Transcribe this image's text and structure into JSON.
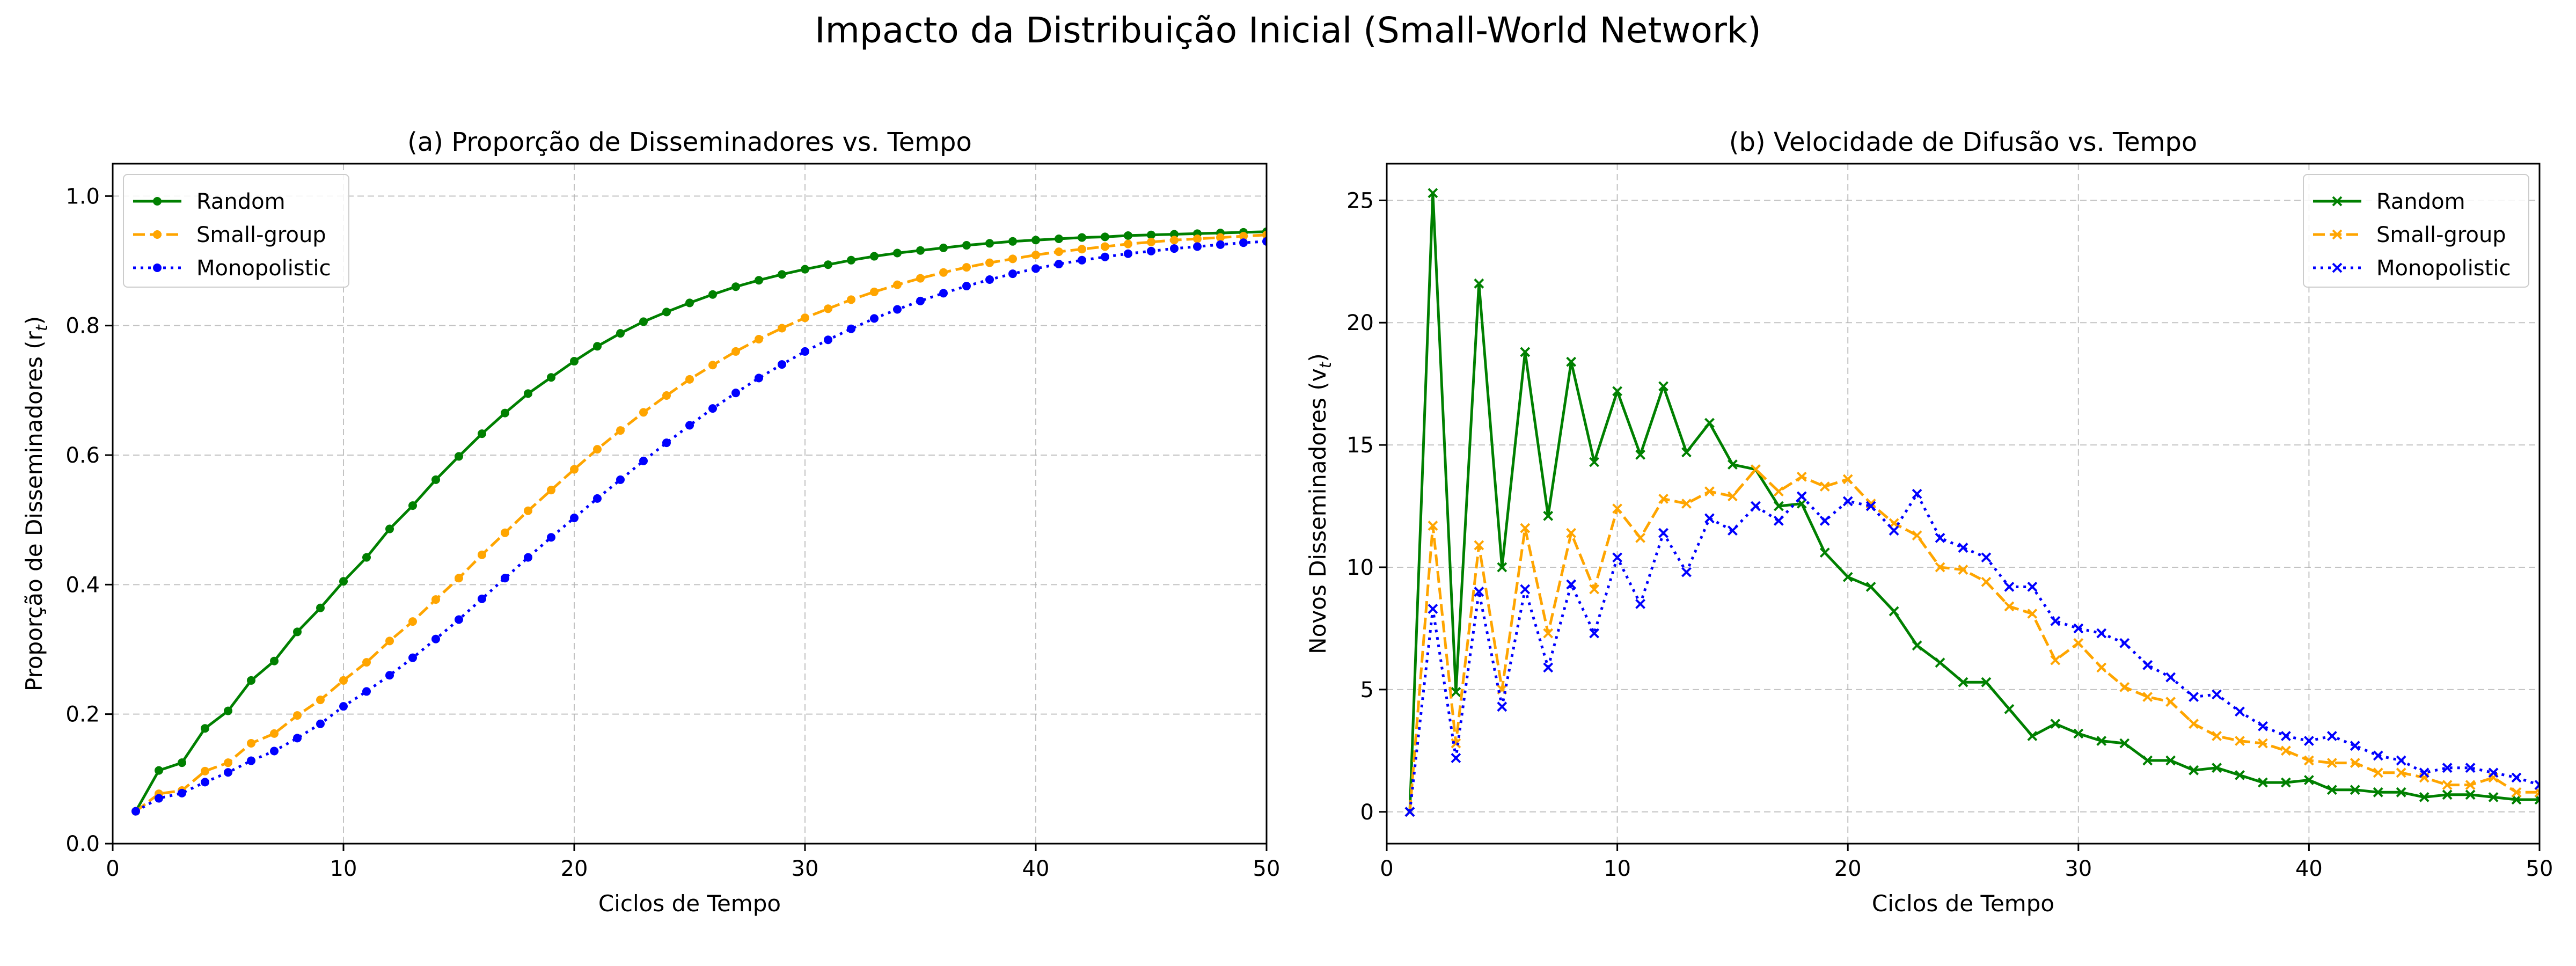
{
  "suptitle": "Impacto da Distribuição Inicial (Small-World Network)",
  "chart_data": [
    {
      "type": "line",
      "title": "(a) Proporção de Disseminadores vs. Tempo",
      "xlabel": "Ciclos de Tempo",
      "ylabel": "Proporção de Disseminadores (r",
      "ylabel_sub": "t",
      "ylabel_end": ")",
      "xlim": [
        0,
        50
      ],
      "ylim": [
        0,
        1.05
      ],
      "xticks": [
        0,
        10,
        20,
        30,
        40,
        50
      ],
      "yticks": [
        0.0,
        0.2,
        0.4,
        0.6,
        0.8,
        1.0
      ],
      "ytick_labels": [
        "0.0",
        "0.2",
        "0.4",
        "0.6",
        "0.8",
        "1.0"
      ],
      "grid": true,
      "legend_position": "upper-left",
      "x": [
        1,
        2,
        3,
        4,
        5,
        6,
        7,
        8,
        9,
        10,
        11,
        12,
        13,
        14,
        15,
        16,
        17,
        18,
        19,
        20,
        21,
        22,
        23,
        24,
        25,
        26,
        27,
        28,
        29,
        30,
        31,
        32,
        33,
        34,
        35,
        36,
        37,
        38,
        39,
        40,
        41,
        42,
        43,
        44,
        45,
        46,
        47,
        48,
        49,
        50
      ],
      "series": [
        {
          "name": "Random",
          "color": "#008000",
          "dash": "solid",
          "marker": "circle",
          "values": [
            0.05,
            0.113,
            0.125,
            0.178,
            0.205,
            0.252,
            0.282,
            0.327,
            0.364,
            0.405,
            0.442,
            0.486,
            0.522,
            0.562,
            0.598,
            0.633,
            0.665,
            0.695,
            0.72,
            0.745,
            0.768,
            0.788,
            0.806,
            0.821,
            0.835,
            0.848,
            0.86,
            0.87,
            0.879,
            0.887,
            0.894,
            0.901,
            0.907,
            0.912,
            0.916,
            0.92,
            0.924,
            0.927,
            0.93,
            0.932,
            0.934,
            0.936,
            0.937,
            0.939,
            0.94,
            0.941,
            0.942,
            0.943,
            0.944,
            0.945
          ]
        },
        {
          "name": "Small-group",
          "color": "#FFA500",
          "dash": "dashed",
          "marker": "circle",
          "values": [
            0.05,
            0.077,
            0.082,
            0.112,
            0.125,
            0.155,
            0.17,
            0.198,
            0.222,
            0.252,
            0.28,
            0.313,
            0.343,
            0.377,
            0.41,
            0.446,
            0.48,
            0.514,
            0.546,
            0.578,
            0.609,
            0.638,
            0.666,
            0.692,
            0.717,
            0.739,
            0.76,
            0.779,
            0.796,
            0.812,
            0.826,
            0.84,
            0.852,
            0.863,
            0.873,
            0.882,
            0.89,
            0.897,
            0.903,
            0.909,
            0.914,
            0.918,
            0.922,
            0.926,
            0.929,
            0.932,
            0.934,
            0.936,
            0.938,
            0.94
          ]
        },
        {
          "name": "Monopolistic",
          "color": "#0000FF",
          "dash": "dotted",
          "marker": "circle",
          "values": [
            0.05,
            0.07,
            0.078,
            0.095,
            0.11,
            0.128,
            0.143,
            0.163,
            0.185,
            0.212,
            0.235,
            0.26,
            0.287,
            0.316,
            0.346,
            0.378,
            0.41,
            0.442,
            0.473,
            0.503,
            0.533,
            0.562,
            0.591,
            0.619,
            0.646,
            0.672,
            0.696,
            0.719,
            0.74,
            0.76,
            0.778,
            0.795,
            0.811,
            0.825,
            0.838,
            0.85,
            0.861,
            0.871,
            0.88,
            0.888,
            0.895,
            0.901,
            0.906,
            0.911,
            0.915,
            0.919,
            0.922,
            0.925,
            0.928,
            0.93
          ]
        }
      ]
    },
    {
      "type": "line",
      "title": "(b) Velocidade de Difusão vs. Tempo",
      "xlabel": "Ciclos de Tempo",
      "ylabel": "Novos Disseminadores (v",
      "ylabel_sub": "t",
      "ylabel_end": ")",
      "xlim": [
        0,
        50
      ],
      "ylim": [
        -1.3,
        26.5
      ],
      "xticks": [
        0,
        10,
        20,
        30,
        40,
        50
      ],
      "yticks": [
        0,
        5,
        10,
        15,
        20,
        25
      ],
      "ytick_labels": [
        "0",
        "5",
        "10",
        "15",
        "20",
        "25"
      ],
      "grid": true,
      "legend_position": "upper-right",
      "x": [
        1,
        2,
        3,
        4,
        5,
        6,
        7,
        8,
        9,
        10,
        11,
        12,
        13,
        14,
        15,
        16,
        17,
        18,
        19,
        20,
        21,
        22,
        23,
        24,
        25,
        26,
        27,
        28,
        29,
        30,
        31,
        32,
        33,
        34,
        35,
        36,
        37,
        38,
        39,
        40,
        41,
        42,
        43,
        44,
        45,
        46,
        47,
        48,
        49,
        50
      ],
      "series": [
        {
          "name": "Random",
          "color": "#008000",
          "dash": "solid",
          "marker": "x",
          "values": [
            0,
            25.3,
            4.9,
            21.6,
            10.0,
            18.8,
            12.1,
            18.4,
            14.3,
            17.2,
            14.6,
            17.4,
            14.7,
            15.9,
            14.2,
            14.0,
            12.5,
            12.6,
            10.6,
            9.6,
            9.2,
            8.2,
            6.8,
            6.1,
            5.3,
            5.3,
            4.2,
            3.1,
            3.6,
            3.2,
            2.9,
            2.8,
            2.1,
            2.1,
            1.7,
            1.8,
            1.5,
            1.2,
            1.2,
            1.3,
            0.9,
            0.9,
            0.8,
            0.8,
            0.6,
            0.7,
            0.7,
            0.6,
            0.5,
            0.5
          ]
        },
        {
          "name": "Small-group",
          "color": "#FFA500",
          "dash": "dashed",
          "marker": "x",
          "values": [
            0,
            11.7,
            2.8,
            10.9,
            5.0,
            11.6,
            7.3,
            11.4,
            9.1,
            12.4,
            11.2,
            12.8,
            12.6,
            13.1,
            12.9,
            14.0,
            13.1,
            13.7,
            13.3,
            13.6,
            12.6,
            11.8,
            11.3,
            10.0,
            9.9,
            9.4,
            8.4,
            8.1,
            6.2,
            6.9,
            5.9,
            5.1,
            4.7,
            4.5,
            3.6,
            3.1,
            2.9,
            2.8,
            2.5,
            2.1,
            2.0,
            2.0,
            1.6,
            1.6,
            1.4,
            1.1,
            1.1,
            1.4,
            0.8,
            0.8
          ]
        },
        {
          "name": "Monopolistic",
          "color": "#0000FF",
          "dash": "dotted",
          "marker": "x",
          "values": [
            0,
            8.3,
            2.2,
            9.0,
            4.3,
            9.1,
            5.9,
            9.3,
            7.3,
            10.4,
            8.5,
            11.4,
            9.8,
            12.0,
            11.5,
            12.5,
            11.9,
            12.9,
            11.9,
            12.7,
            12.5,
            11.5,
            13.0,
            11.2,
            10.8,
            10.4,
            9.2,
            9.2,
            7.8,
            7.5,
            7.3,
            6.9,
            6.0,
            5.5,
            4.7,
            4.8,
            4.1,
            3.5,
            3.1,
            2.9,
            3.1,
            2.7,
            2.3,
            2.1,
            1.6,
            1.8,
            1.8,
            1.6,
            1.4,
            1.1
          ]
        }
      ]
    }
  ]
}
